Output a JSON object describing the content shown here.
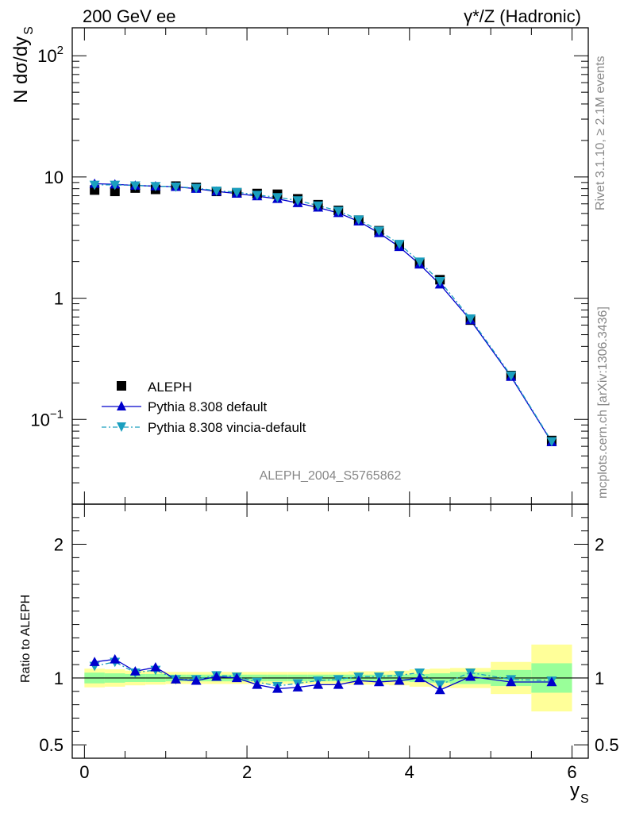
{
  "header": {
    "left": "200 GeV ee",
    "right": "γ*/Z (Hadronic)"
  },
  "side": {
    "rivet": "Rivet 3.1.10, ≥ 2.1M events",
    "mcplots": "mcplots.cern.ch [arXiv:1306.3436]"
  },
  "analysis_id": "ALEPH_2004_S5765862",
  "colors": {
    "data": "#000000",
    "pythia_default": "#0000cc",
    "vincia": "#1a9fbf",
    "band_inner": "#99ff99",
    "band_outer": "#ffff99"
  },
  "chart_data": [
    {
      "type": "scatter",
      "ylabel": "N dσ/dy",
      "ylabel_sub": "S",
      "yscale": "log",
      "ylim": [
        0.02,
        170
      ],
      "xlim": [
        -0.15,
        6.2
      ],
      "ytick_labels": [
        "10",
        "1"
      ],
      "ytick_exp_labels": [
        {
          "base": "10",
          "exp": "2",
          "value": 100
        },
        {
          "base": "10",
          "exp": "−1",
          "value": 0.1
        }
      ],
      "legend": [
        "ALEPH",
        "Pythia 8.308 default",
        "Pythia 8.308 vincia-default"
      ],
      "legend_placement": "lower-left",
      "series": [
        {
          "name": "ALEPH",
          "marker": "square",
          "x": [
            0.125,
            0.375,
            0.625,
            0.875,
            1.125,
            1.375,
            1.625,
            1.875,
            2.125,
            2.375,
            2.625,
            2.875,
            3.125,
            3.375,
            3.625,
            3.875,
            4.125,
            4.375,
            4.75,
            5.25,
            5.75
          ],
          "y": [
            7.8,
            7.6,
            8.1,
            7.9,
            8.4,
            8.2,
            7.6,
            7.4,
            7.3,
            7.2,
            6.6,
            5.9,
            5.3,
            4.4,
            3.6,
            2.75,
            1.95,
            1.42,
            0.66,
            0.23,
            0.067
          ]
        },
        {
          "name": "Pythia 8.308 default",
          "marker": "triangle-up",
          "x": [
            0.125,
            0.375,
            0.625,
            0.875,
            1.125,
            1.375,
            1.625,
            1.875,
            2.125,
            2.375,
            2.625,
            2.875,
            3.125,
            3.375,
            3.625,
            3.875,
            4.125,
            4.375,
            4.75,
            5.25,
            5.75
          ],
          "y": [
            8.8,
            8.7,
            8.5,
            8.4,
            8.3,
            8.0,
            7.6,
            7.3,
            6.95,
            6.6,
            6.1,
            5.6,
            5.05,
            4.3,
            3.45,
            2.65,
            1.9,
            1.3,
            0.66,
            0.225,
            0.065
          ]
        },
        {
          "name": "Pythia 8.308 vincia-default",
          "marker": "triangle-down",
          "x": [
            0.125,
            0.375,
            0.625,
            0.875,
            1.125,
            1.375,
            1.625,
            1.875,
            2.125,
            2.375,
            2.625,
            2.875,
            3.125,
            3.375,
            3.625,
            3.875,
            4.125,
            4.375,
            4.75,
            5.25,
            5.75
          ],
          "y": [
            8.6,
            8.6,
            8.5,
            8.4,
            8.3,
            8.1,
            7.7,
            7.5,
            7.1,
            6.8,
            6.4,
            5.8,
            5.25,
            4.45,
            3.6,
            2.8,
            2.0,
            1.38,
            0.68,
            0.23,
            0.066
          ]
        }
      ]
    },
    {
      "type": "scatter",
      "ylabel": "Ratio to ALEPH",
      "xlabel": "y",
      "xlabel_sub": "S",
      "ylim": [
        0.4,
        2.3
      ],
      "xlim": [
        -0.15,
        6.2
      ],
      "yticks": [
        0.5,
        1,
        2
      ],
      "ytick_labels": [
        "0.5",
        "1",
        "2"
      ],
      "xticks": [
        0,
        2,
        4,
        6
      ],
      "xtick_labels": [
        "0",
        "2",
        "4",
        "6"
      ],
      "bands": {
        "bin_edges": [
          0.0,
          0.25,
          0.5,
          0.75,
          1.0,
          1.25,
          1.5,
          1.75,
          2.0,
          2.25,
          2.5,
          2.75,
          3.0,
          3.25,
          3.5,
          3.75,
          4.0,
          4.25,
          4.5,
          5.0,
          5.5,
          6.0
        ],
        "inner_halfwidth": [
          0.04,
          0.035,
          0.03,
          0.03,
          0.025,
          0.025,
          0.025,
          0.025,
          0.025,
          0.025,
          0.025,
          0.025,
          0.025,
          0.025,
          0.025,
          0.025,
          0.03,
          0.035,
          0.045,
          0.06,
          0.11
        ],
        "outer_halfwidth": [
          0.07,
          0.065,
          0.055,
          0.05,
          0.045,
          0.045,
          0.045,
          0.045,
          0.045,
          0.045,
          0.045,
          0.045,
          0.045,
          0.05,
          0.05,
          0.055,
          0.065,
          0.07,
          0.075,
          0.12,
          0.25
        ]
      },
      "series": [
        {
          "name": "Pythia 8.308 default",
          "x": [
            0.125,
            0.375,
            0.625,
            0.875,
            1.125,
            1.375,
            1.625,
            1.875,
            2.125,
            2.375,
            2.625,
            2.875,
            3.125,
            3.375,
            3.625,
            3.875,
            4.125,
            4.375,
            4.75,
            5.25,
            5.75
          ],
          "y": [
            1.12,
            1.14,
            1.05,
            1.08,
            0.99,
            0.98,
            1.01,
            1.0,
            0.95,
            0.92,
            0.93,
            0.95,
            0.95,
            0.98,
            0.97,
            0.98,
            1.0,
            0.91,
            1.01,
            0.97,
            0.97
          ]
        },
        {
          "name": "Pythia 8.308 vincia-default",
          "x": [
            0.125,
            0.375,
            0.625,
            0.875,
            1.125,
            1.375,
            1.625,
            1.875,
            2.125,
            2.375,
            2.625,
            2.875,
            3.125,
            3.375,
            3.625,
            3.875,
            4.125,
            4.375,
            4.75,
            5.25,
            5.75
          ],
          "y": [
            1.09,
            1.12,
            1.04,
            1.06,
            0.99,
            0.99,
            1.02,
            1.01,
            0.97,
            0.94,
            0.96,
            0.98,
            0.99,
            1.01,
            1.01,
            1.02,
            1.04,
            0.95,
            1.04,
            0.99,
            0.98
          ]
        }
      ]
    }
  ]
}
